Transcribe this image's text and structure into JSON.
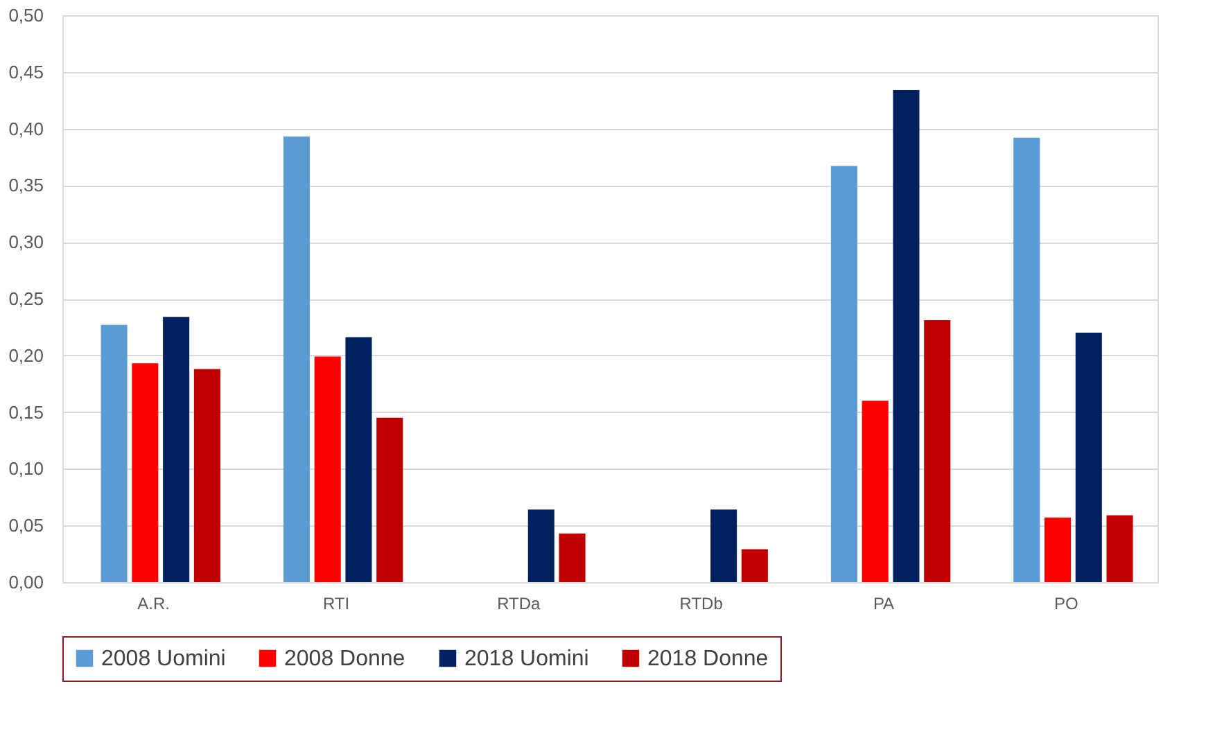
{
  "chart_data": {
    "type": "bar",
    "categories": [
      "A.R.",
      "RTI",
      "RTDa",
      "RTDb",
      "PA",
      "PO"
    ],
    "series": [
      {
        "name": "2008 Uomini",
        "color": "#5b9bd5",
        "values": [
          0.227,
          0.393,
          null,
          null,
          0.367,
          0.392
        ]
      },
      {
        "name": "2008 Donne",
        "color": "#ff0000",
        "values": [
          0.193,
          0.199,
          null,
          null,
          0.16,
          0.057
        ]
      },
      {
        "name": "2018 Uomini",
        "color": "#002060",
        "values": [
          0.234,
          0.216,
          0.064,
          0.064,
          0.434,
          0.22
        ]
      },
      {
        "name": "2018 Donne",
        "color": "#c00000",
        "values": [
          0.188,
          0.145,
          0.043,
          0.029,
          0.231,
          0.059
        ]
      }
    ],
    "ylim": [
      0,
      0.5
    ],
    "yticks": [
      {
        "value": 0,
        "label": "0,00"
      },
      {
        "value": 0.05,
        "label": "0,05"
      },
      {
        "value": 0.1,
        "label": "0,10"
      },
      {
        "value": 0.15,
        "label": "0,15"
      },
      {
        "value": 0.2,
        "label": "0,20"
      },
      {
        "value": 0.25,
        "label": "0,25"
      },
      {
        "value": 0.3,
        "label": "0,30"
      },
      {
        "value": 0.35,
        "label": "0,35"
      },
      {
        "value": 0.4,
        "label": "0,40"
      },
      {
        "value": 0.45,
        "label": "0,45"
      },
      {
        "value": 0.5,
        "label": "0,50"
      }
    ],
    "grid": "y",
    "legend": "bottom"
  }
}
